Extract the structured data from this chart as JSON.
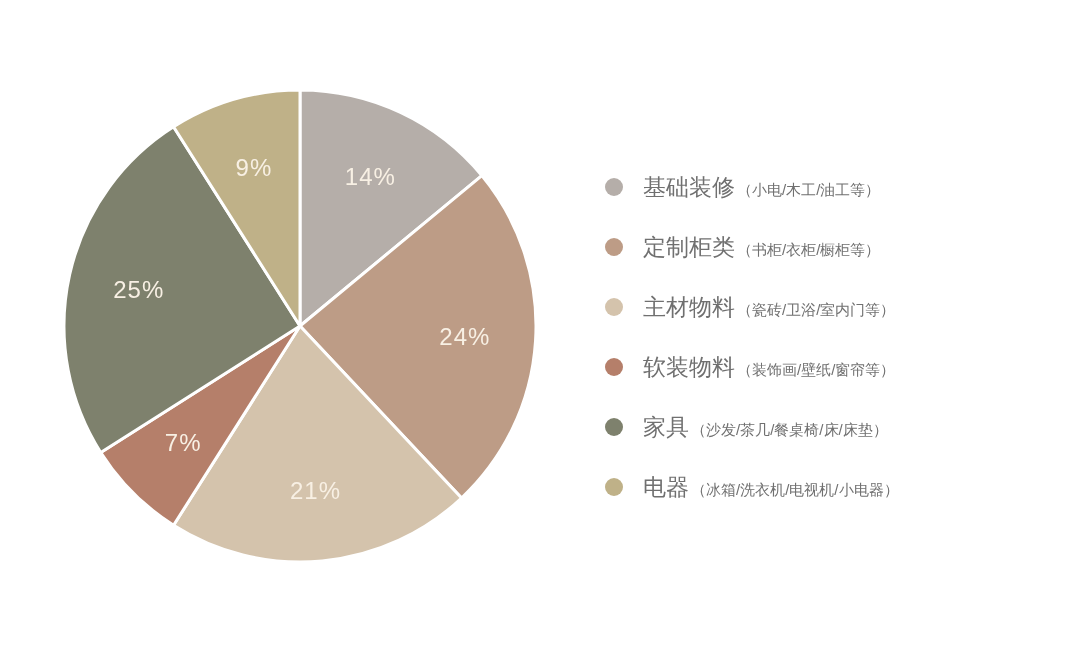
{
  "chart_data": {
    "type": "pie",
    "categories": [
      "基础装修（小电/木工/油工等）",
      "定制柜类（书柜/衣柜/橱柜等）",
      "主材物料（瓷砖/卫浴/室内门等）",
      "软装物料（装饰画/壁纸/窗帘等）",
      "家具（沙发/茶几/餐桌椅/床/床垫）",
      "电器（冰箱/洗衣机/电视机/小电器）"
    ],
    "values": [
      14,
      24,
      21,
      7,
      25,
      9
    ],
    "colors": [
      "#b5aea9",
      "#bd9c86",
      "#d4c3ac",
      "#b57f6a",
      "#7e816d",
      "#bfb188"
    ],
    "value_labels": [
      "14%",
      "24%",
      "21%",
      "7%",
      "25%",
      "9%"
    ],
    "legend": "right"
  }
}
